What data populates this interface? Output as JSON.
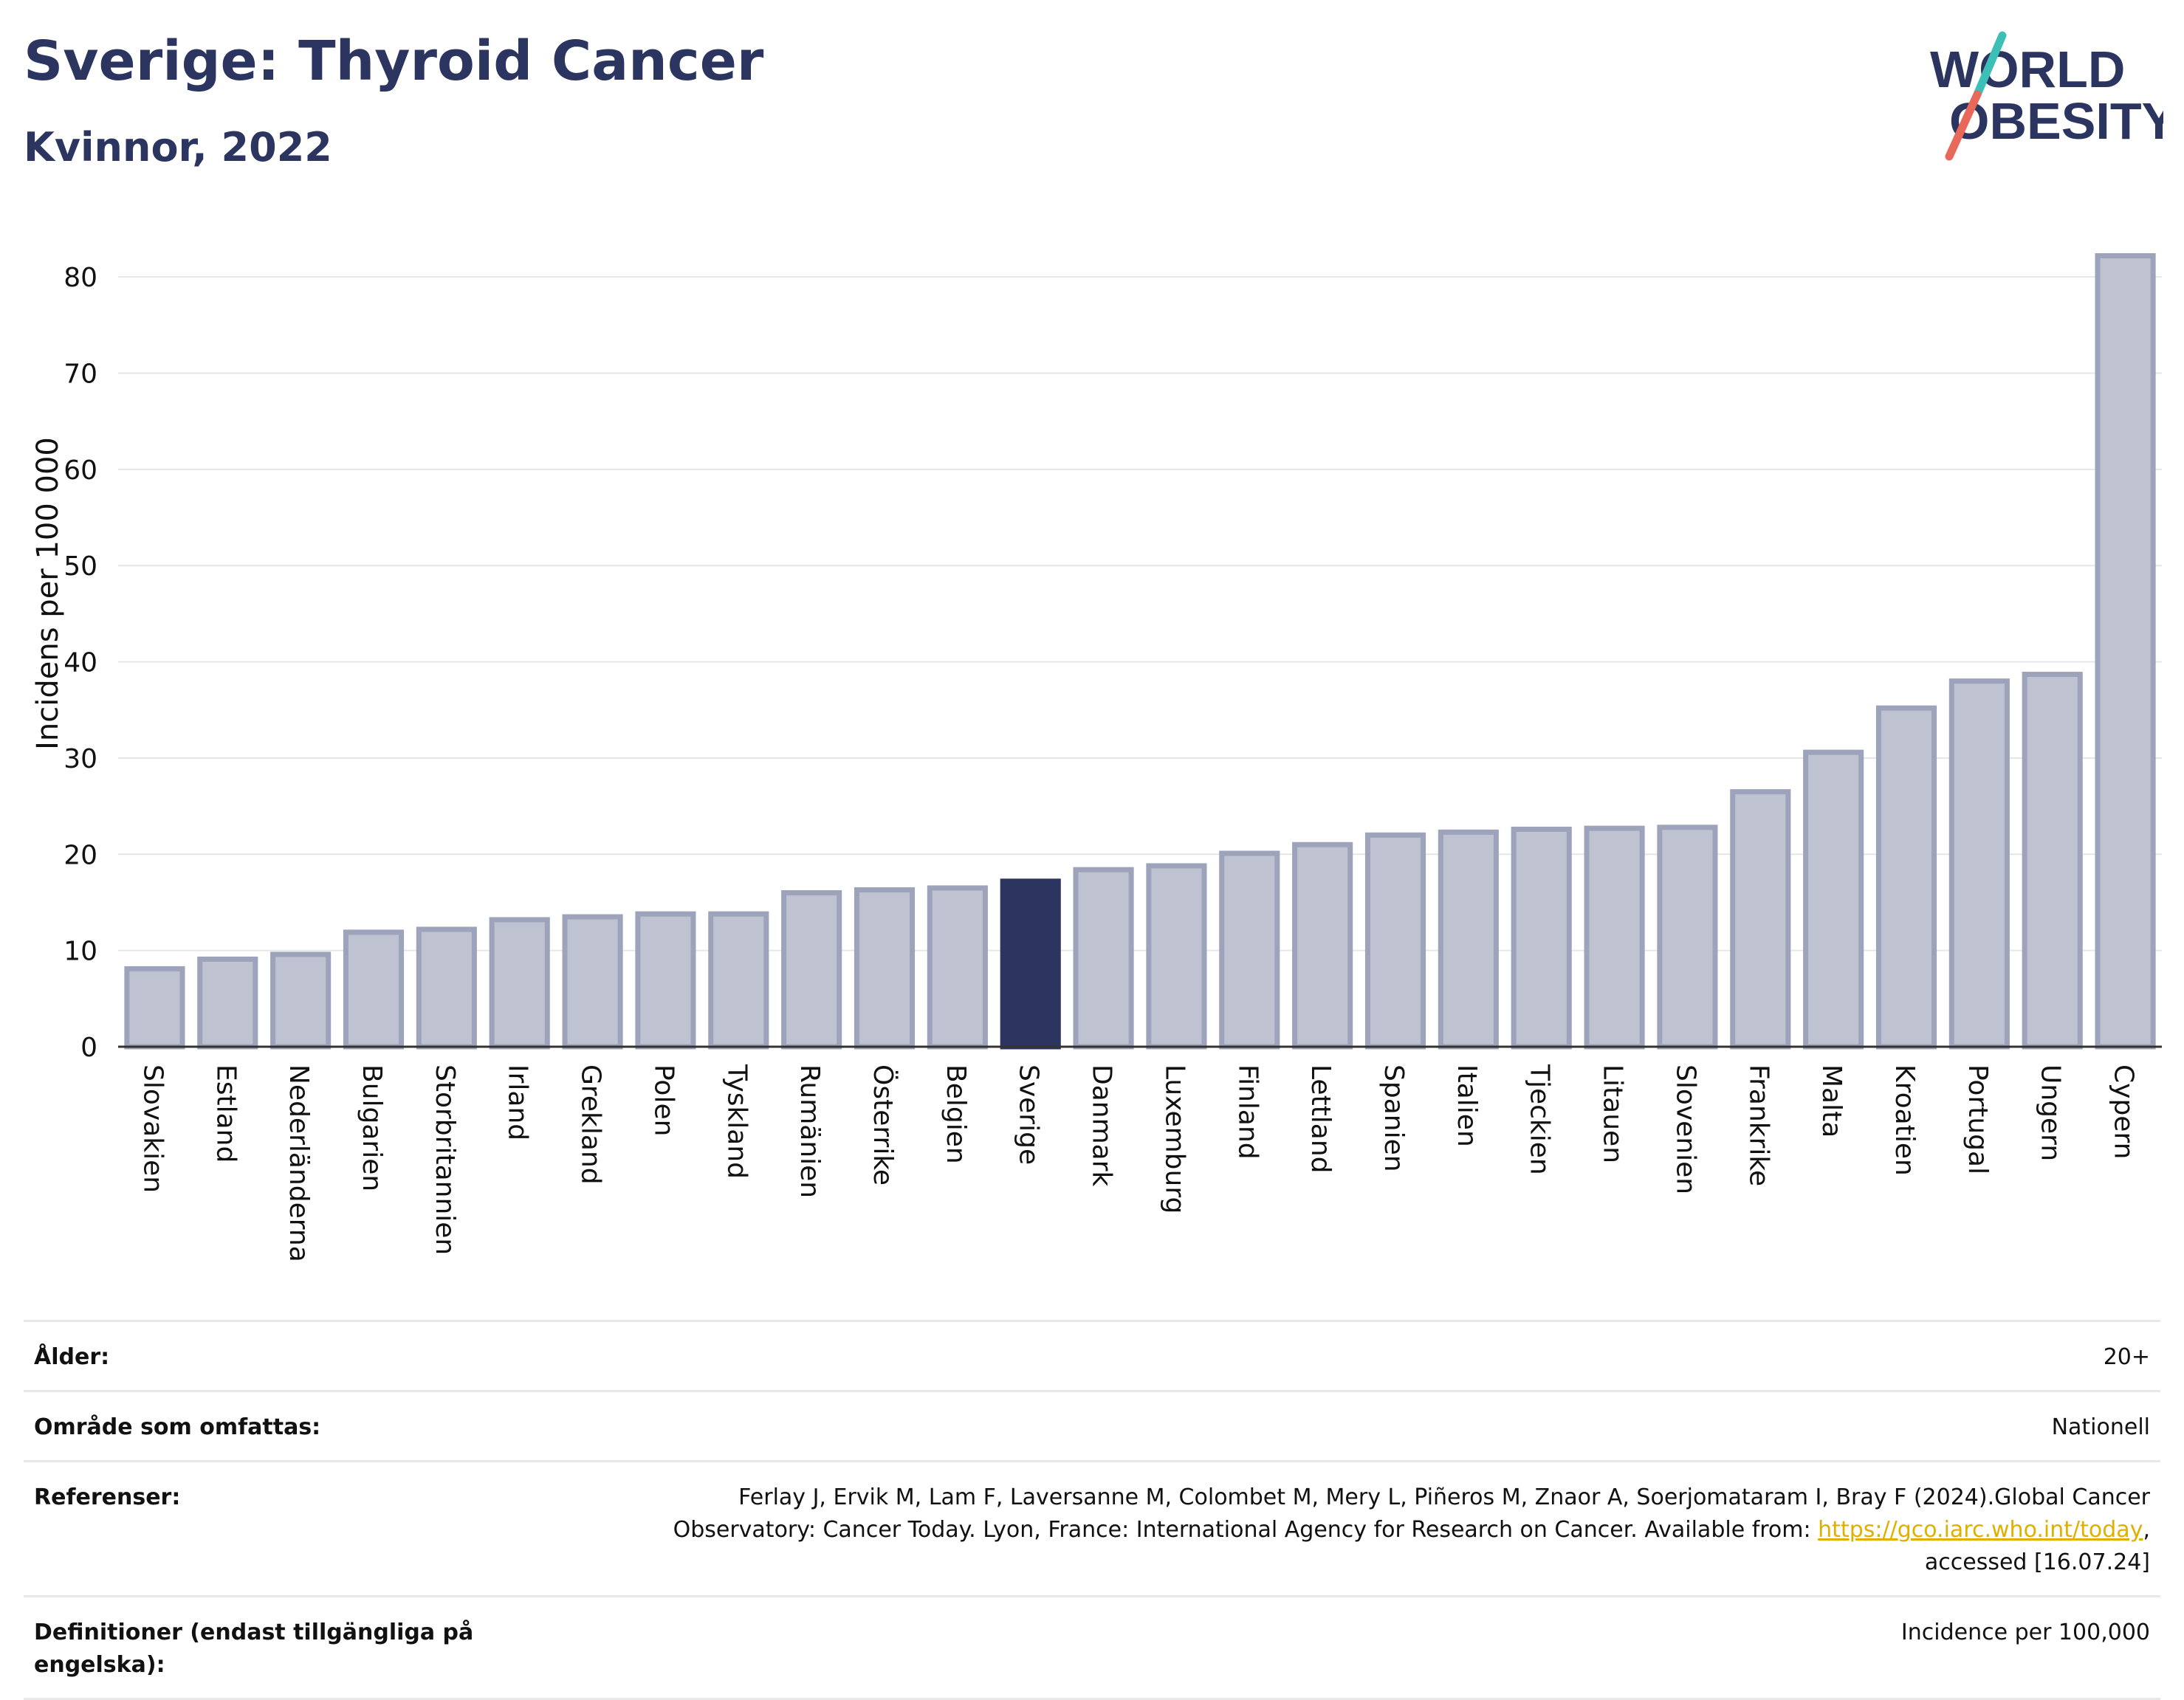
{
  "header": {
    "title": "Sverige: Thyroid Cancer",
    "subtitle": "Kvinnor, 2022"
  },
  "logo": {
    "line1": "WORLD",
    "line2": "OBESITY"
  },
  "colors": {
    "bar": "#bfc2d0",
    "bar_stroke": "#9da3ba",
    "highlight": "#2b3560",
    "grid": "#e6e6e6",
    "text": "#2b3560"
  },
  "chart_data": {
    "type": "bar",
    "ylabel": "Incidens per 100 000",
    "ylim": [
      0,
      85
    ],
    "yticks": [
      0,
      10,
      20,
      30,
      40,
      50,
      60,
      70,
      80
    ],
    "grid": true,
    "highlight": "Sverige",
    "categories": [
      "Slovakien",
      "Estland",
      "Nederländerna",
      "Bulgarien",
      "Storbritannien",
      "Irland",
      "Grekland",
      "Polen",
      "Tyskland",
      "Rumänien",
      "Österrike",
      "Belgien",
      "Sverige",
      "Danmark",
      "Luxemburg",
      "Finland",
      "Lettland",
      "Spanien",
      "Italien",
      "Tjeckien",
      "Litauen",
      "Slovenien",
      "Frankrike",
      "Malta",
      "Kroatien",
      "Portugal",
      "Ungern",
      "Cypern"
    ],
    "values": [
      8.1,
      9.1,
      9.6,
      11.9,
      12.2,
      13.2,
      13.5,
      13.8,
      13.8,
      16.0,
      16.3,
      16.5,
      17.2,
      18.4,
      18.8,
      20.1,
      21.0,
      22.0,
      22.3,
      22.6,
      22.7,
      22.8,
      26.5,
      30.6,
      35.2,
      38.0,
      38.7,
      82.2
    ]
  },
  "info": {
    "age_label": "Ålder:",
    "age_value": "20+",
    "area_label": "Område som omfattas:",
    "area_value": "Nationell",
    "ref_label": "Referenser:",
    "ref_text_1": "Ferlay J, Ervik M, Lam F, Laversanne M, Colombet M, Mery L, Piñeros M, Znaor A, Soerjomataram I, Bray F (2024).Global Cancer",
    "ref_text_2": "Observatory: Cancer Today. Lyon, France: International Agency for Research on Cancer. Available from: ",
    "ref_link": "https://gco.iarc.who.int/today",
    "ref_text_3": ",",
    "ref_text_4": "accessed [16.07.24]",
    "def_label": "Definitioner (endast tillgängliga på engelska):",
    "def_value": "Incidence per 100,000"
  }
}
